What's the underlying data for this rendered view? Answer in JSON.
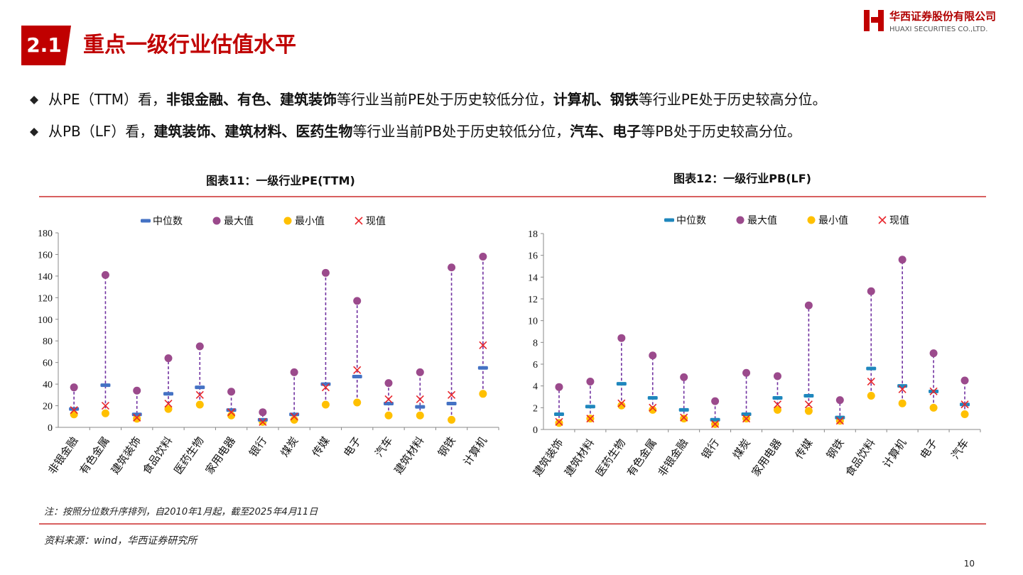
{
  "header": {
    "number": "2.1",
    "title": "重点一级行业估值水平"
  },
  "logo": {
    "name": "华西证券股份有限公司",
    "name_en": "HUAXI SECURITIES CO.,LTD."
  },
  "bullets": [
    [
      {
        "text": "从PE（TTM）看，",
        "bold": false
      },
      {
        "text": "非银金融、有色、建筑装饰",
        "bold": true
      },
      {
        "text": "等行业当前PE处于历史较低分位，",
        "bold": false
      },
      {
        "text": "计算机、钢铁",
        "bold": true
      },
      {
        "text": "等行业PE处于历史较高分位。",
        "bold": false
      }
    ],
    [
      {
        "text": "从PB（LF）看，",
        "bold": false
      },
      {
        "text": "建筑装饰、建筑材料、医药生物",
        "bold": true
      },
      {
        "text": "等行业当前PB处于历史较低分位，",
        "bold": false
      },
      {
        "text": "汽车、电子",
        "bold": true
      },
      {
        "text": "等PB处于历史较高分位。",
        "bold": false
      }
    ]
  ],
  "chart_data": [
    {
      "type": "range",
      "title": "图表11：一级行业PE(TTM)",
      "categories": [
        "非银金融",
        "有色金属",
        "建筑装饰",
        "食品饮料",
        "医药生物",
        "家用电器",
        "银行",
        "煤炭",
        "传媒",
        "电子",
        "汽车",
        "建筑材料",
        "钢铁",
        "计算机"
      ],
      "series": [
        {
          "name": "中位数",
          "color": "#4472c4",
          "values": [
            17,
            39,
            12,
            31,
            37,
            16,
            7,
            12,
            40,
            47,
            22,
            19,
            22,
            55
          ]
        },
        {
          "name": "最大值",
          "color": "#9b4a8c",
          "values": [
            37,
            141,
            34,
            64,
            75,
            33,
            14,
            51,
            143,
            117,
            41,
            51,
            148,
            158
          ]
        },
        {
          "name": "最小值",
          "color": "#ffc000",
          "values": [
            12,
            13,
            8,
            17,
            21,
            11,
            5,
            7,
            21,
            23,
            11,
            11,
            7,
            31
          ]
        },
        {
          "name": "现值",
          "color": "#e8262c",
          "values": [
            16,
            20,
            9,
            22,
            30,
            14,
            5,
            10,
            37,
            53,
            26,
            26,
            30,
            76
          ]
        }
      ],
      "ylim": [
        0,
        180
      ],
      "yticks": [
        0,
        20,
        40,
        60,
        80,
        100,
        120,
        140,
        160,
        180
      ],
      "range_color": "#7030a0"
    },
    {
      "type": "range",
      "title": "图表12：一级行业PB(LF)",
      "categories": [
        "建筑装饰",
        "建筑材料",
        "医药生物",
        "有色金属",
        "非银金融",
        "银行",
        "煤炭",
        "家用电器",
        "传媒",
        "钢铁",
        "食品饮料",
        "计算机",
        "电子",
        "汽车"
      ],
      "series": [
        {
          "name": "中位数",
          "color": "#1f87bd",
          "values": [
            1.4,
            2.1,
            4.2,
            2.9,
            1.8,
            0.9,
            1.4,
            2.9,
            3.1,
            1.1,
            5.6,
            4.0,
            3.5,
            2.3
          ]
        },
        {
          "name": "最大值",
          "color": "#9b4a8c",
          "values": [
            3.9,
            4.4,
            8.4,
            6.8,
            4.8,
            2.6,
            5.2,
            4.9,
            11.4,
            2.7,
            12.7,
            15.6,
            7.0,
            4.5
          ]
        },
        {
          "name": "最小值",
          "color": "#ffc000",
          "values": [
            0.6,
            1.0,
            2.2,
            1.8,
            1.0,
            0.5,
            1.0,
            1.8,
            1.7,
            0.8,
            3.1,
            2.4,
            2.0,
            1.4
          ]
        },
        {
          "name": "现值",
          "color": "#e8262c",
          "values": [
            0.7,
            1.0,
            2.4,
            2.0,
            1.1,
            0.5,
            1.0,
            2.3,
            2.3,
            0.8,
            4.4,
            3.7,
            3.5,
            2.3
          ]
        }
      ],
      "ylim": [
        0,
        18
      ],
      "yticks": [
        0,
        2,
        4,
        6,
        8,
        10,
        12,
        14,
        16,
        18
      ],
      "range_color": "#7030a0"
    }
  ],
  "note": "注：按照分位数升序排列，自2010年1月起，截至2025年4月11日",
  "source": "资料来源：wind，华西证券研究所",
  "page": "10"
}
